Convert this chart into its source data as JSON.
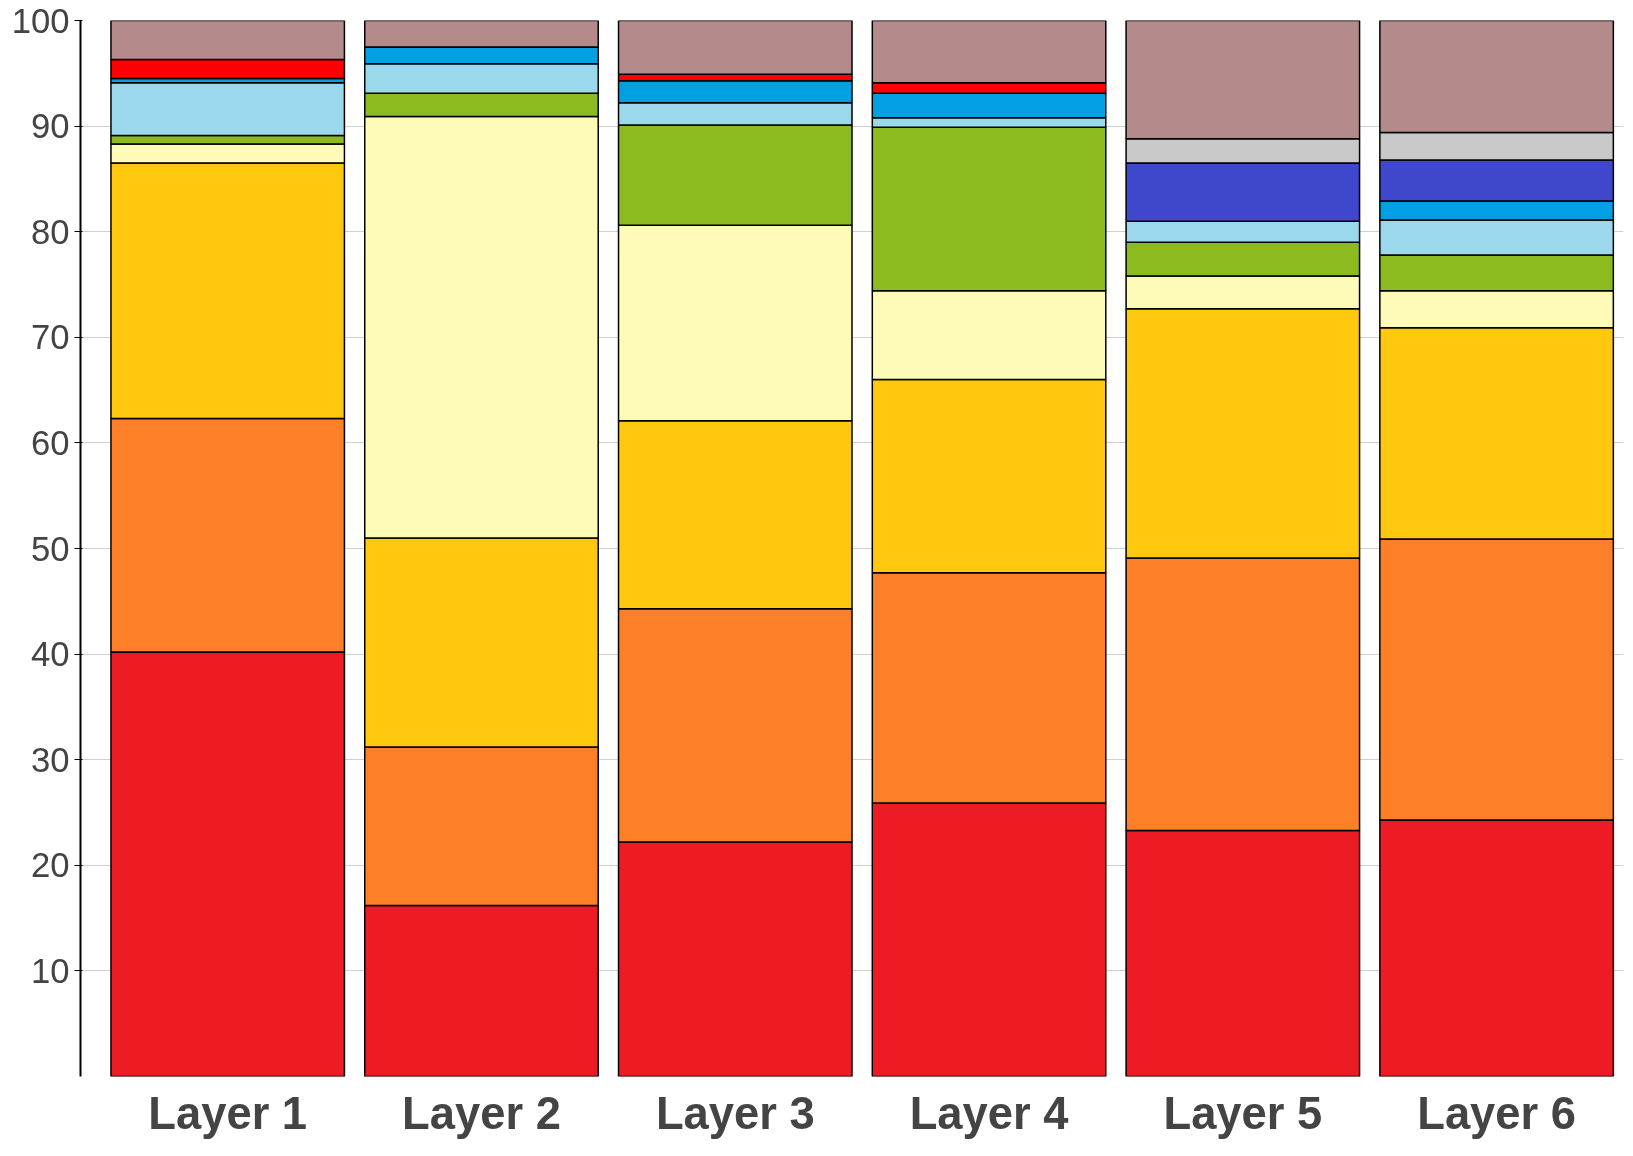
{
  "chart_data": {
    "type": "bar",
    "stacked": true,
    "categories": [
      "Layer 1",
      "Layer 2",
      "Layer 3",
      "Layer 4",
      "Layer 5",
      "Layer 6"
    ],
    "series": [
      {
        "color": "#ed1c24",
        "values": [
          40.2,
          16.2,
          22.2,
          25.9,
          23.3,
          24.3
        ]
      },
      {
        "color": "#fd7f28",
        "values": [
          22.1,
          15.0,
          22.1,
          21.8,
          25.8,
          26.6
        ]
      },
      {
        "color": "#fec80f",
        "values": [
          24.2,
          19.8,
          17.8,
          18.3,
          23.6,
          20.0
        ]
      },
      {
        "color": "#fefab7",
        "values": [
          1.8,
          39.9,
          18.5,
          8.4,
          3.1,
          3.5
        ]
      },
      {
        "color": "#8cbb1f",
        "values": [
          0.8,
          2.2,
          9.5,
          15.5,
          3.2,
          3.4
        ]
      },
      {
        "color": "#9cd8ec",
        "values": [
          5.0,
          2.8,
          2.1,
          0.9,
          2.0,
          3.3
        ]
      },
      {
        "color": "#039fe3",
        "values": [
          0.4,
          1.6,
          2.1,
          2.3,
          0,
          1.8
        ]
      },
      {
        "color": "#3f48cc",
        "values": [
          0,
          0,
          0,
          0,
          5.5,
          3.9
        ]
      },
      {
        "color": "#c8c8c8",
        "values": [
          0,
          0,
          0,
          0,
          2.3,
          2.6
        ]
      },
      {
        "color": "#ff0000",
        "values": [
          1.8,
          0,
          0.6,
          1.0,
          0,
          0
        ]
      },
      {
        "color": "#b58a8a",
        "values": [
          3.7,
          2.5,
          5.1,
          5.9,
          11.2,
          10.6
        ]
      }
    ],
    "ylim": [
      0,
      100
    ],
    "yticks": [
      10,
      20,
      30,
      40,
      50,
      60,
      70,
      80,
      90,
      100
    ],
    "grid": "y"
  }
}
